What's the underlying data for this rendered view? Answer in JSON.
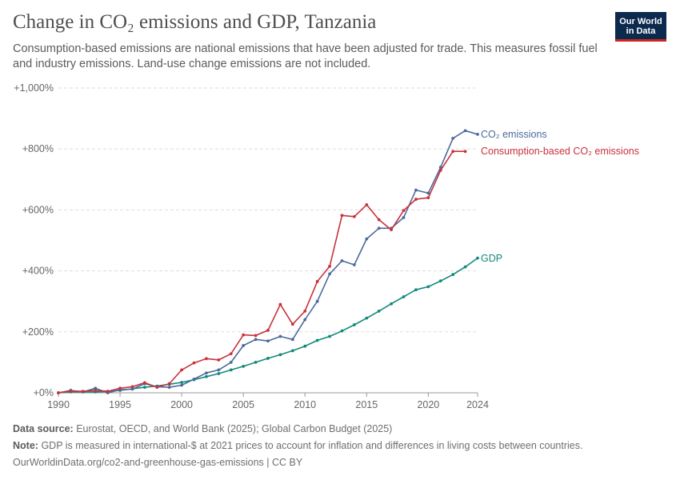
{
  "title": "Change in CO₂ emissions and GDP, Tanzania",
  "subtitle": "Consumption-based emissions are national emissions that have been adjusted for trade. This measures fossil fuel and industry emissions. Land-use change emissions are not included.",
  "logo": {
    "line1": "Our World",
    "line2": "in Data"
  },
  "footer": {
    "source_label": "Data source:",
    "source": "Eurostat, OECD, and World Bank (2025); Global Carbon Budget (2025)",
    "note_label": "Note:",
    "note": "GDP is measured in international-$ at 2021 prices to account for inflation and differences in living costs between countries.",
    "url": "OurWorldinData.org/co2-and-greenhouse-gas-emissions | CC BY"
  },
  "colors": {
    "co2": "#4c6a9c",
    "consumption": "#c9313b",
    "gdp": "#12897a",
    "grid": "#dddddd",
    "axis": "#666666"
  },
  "chart_data": {
    "type": "line",
    "xlim": [
      1990,
      2024
    ],
    "ylim": [
      0,
      1000
    ],
    "y_ticks": [
      0,
      200,
      400,
      600,
      800,
      1000
    ],
    "y_tick_labels": [
      "+0%",
      "+200%",
      "+400%",
      "+600%",
      "+800%",
      "+1,000%"
    ],
    "x_ticks": [
      1990,
      1995,
      2000,
      2005,
      2010,
      2015,
      2020,
      2024
    ],
    "x_tick_labels": [
      "1990",
      "1995",
      "2000",
      "2005",
      "2010",
      "2015",
      "2020",
      "2024"
    ],
    "grid": "horizontal dashed",
    "legend": "inline labels at line ends",
    "series": [
      {
        "name": "CO₂ emissions",
        "key": "co2",
        "x": [
          1990,
          1991,
          1992,
          1993,
          1994,
          1995,
          1996,
          1997,
          1998,
          1999,
          2000,
          2001,
          2002,
          2003,
          2004,
          2005,
          2006,
          2007,
          2008,
          2009,
          2010,
          2011,
          2012,
          2013,
          2014,
          2015,
          2016,
          2017,
          2018,
          2019,
          2020,
          2021,
          2022,
          2023,
          2024
        ],
        "values": [
          0,
          8,
          3,
          15,
          0,
          10,
          12,
          30,
          20,
          18,
          25,
          45,
          65,
          75,
          100,
          155,
          175,
          170,
          185,
          175,
          240,
          300,
          390,
          433,
          420,
          505,
          540,
          540,
          575,
          665,
          655,
          740,
          835,
          860,
          848
        ]
      },
      {
        "name": "Consumption-based CO₂ emissions",
        "key": "consumption",
        "x": [
          1990,
          1991,
          1992,
          1993,
          1994,
          1995,
          1996,
          1997,
          1998,
          1999,
          2000,
          2001,
          2002,
          2003,
          2004,
          2005,
          2006,
          2007,
          2008,
          2009,
          2010,
          2011,
          2012,
          2013,
          2014,
          2015,
          2016,
          2017,
          2018,
          2019,
          2020,
          2021,
          2022,
          2023
        ],
        "values": [
          0,
          5,
          5,
          8,
          5,
          15,
          20,
          33,
          18,
          30,
          75,
          98,
          112,
          108,
          128,
          190,
          188,
          205,
          290,
          225,
          268,
          365,
          415,
          582,
          578,
          617,
          568,
          535,
          598,
          635,
          640,
          730,
          792,
          792
        ]
      },
      {
        "name": "GDP",
        "key": "gdp",
        "x": [
          1990,
          1991,
          1992,
          1993,
          1994,
          1995,
          1996,
          1997,
          1998,
          1999,
          2000,
          2001,
          2002,
          2003,
          2004,
          2005,
          2006,
          2007,
          2008,
          2009,
          2010,
          2011,
          2012,
          2013,
          2014,
          2015,
          2016,
          2017,
          2018,
          2019,
          2020,
          2021,
          2022,
          2023,
          2024
        ],
        "values": [
          0,
          3,
          3,
          3,
          4,
          8,
          13,
          18,
          22,
          28,
          34,
          43,
          53,
          63,
          75,
          87,
          100,
          113,
          125,
          138,
          153,
          172,
          185,
          203,
          223,
          245,
          268,
          292,
          315,
          338,
          348,
          367,
          388,
          413,
          442
        ]
      }
    ]
  }
}
